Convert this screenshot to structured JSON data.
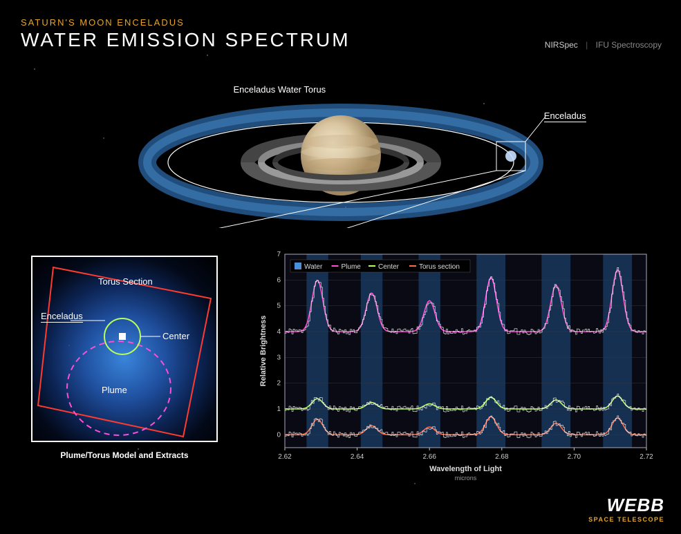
{
  "header": {
    "subtitle": "SATURN'S MOON ENCELADUS",
    "title": "WATER EMISSION SPECTRUM",
    "instrument_name": "NIRSpec",
    "instrument_mode": "IFU Spectroscopy"
  },
  "saturn": {
    "torus_label": "Enceladus Water Torus",
    "enceladus_label": "Enceladus",
    "torus_color": "#3a8de0",
    "saturn_colors": [
      "#d9c5a0",
      "#c9b088",
      "#e6d8b8"
    ],
    "ring_colors": [
      "#777",
      "#999",
      "#555"
    ]
  },
  "model": {
    "caption": "Plume/Torus Model and Extracts",
    "torus_section_label": "Torus Section",
    "enceladus_label": "Enceladus",
    "center_label": "Center",
    "plume_label": "Plume",
    "torus_box_color": "#ff3b2f",
    "center_circle_color": "#b8ff5c",
    "plume_dash_color": "#ff4fd6",
    "enceladus_marker_color": "#ffffff"
  },
  "spectrum": {
    "xlabel": "Wavelength of Light",
    "xlabel_unit": "microns",
    "ylabel": "Relative Brightness",
    "xlim": [
      2.62,
      2.72
    ],
    "ylim": [
      -0.5,
      7
    ],
    "xticks": [
      2.62,
      2.64,
      2.66,
      2.68,
      2.7,
      2.72
    ],
    "yticks": [
      0,
      1,
      2,
      3,
      4,
      5,
      6,
      7
    ],
    "legend": [
      {
        "label": "Water",
        "color": "#4a90d9",
        "type": "fill"
      },
      {
        "label": "Plume",
        "color": "#ff4fd6",
        "type": "line"
      },
      {
        "label": "Center",
        "color": "#b8ff5c",
        "type": "line"
      },
      {
        "label": "Torus section",
        "color": "#ff6b4a",
        "type": "line"
      }
    ],
    "water_bands": [
      [
        2.626,
        2.632
      ],
      [
        2.641,
        2.647
      ],
      [
        2.657,
        2.663
      ],
      [
        2.673,
        2.681
      ],
      [
        2.691,
        2.699
      ],
      [
        2.708,
        2.716
      ]
    ],
    "water_band_color": "#1e4a7a",
    "background": "#0a0a14",
    "grid_color": "#333844",
    "axis_color": "#aab",
    "tick_fontsize": 10,
    "label_fontsize": 11,
    "series": {
      "plume": {
        "baseline": 4.0,
        "color": "#ff4fd6",
        "peaks": [
          {
            "x": 2.629,
            "h": 2.0
          },
          {
            "x": 2.644,
            "h": 1.5
          },
          {
            "x": 2.66,
            "h": 1.2
          },
          {
            "x": 2.677,
            "h": 2.1
          },
          {
            "x": 2.695,
            "h": 1.8
          },
          {
            "x": 2.712,
            "h": 2.4
          }
        ]
      },
      "center": {
        "baseline": 1.0,
        "color": "#b8ff5c",
        "peaks": [
          {
            "x": 2.629,
            "h": 0.4
          },
          {
            "x": 2.644,
            "h": 0.25
          },
          {
            "x": 2.66,
            "h": 0.2
          },
          {
            "x": 2.677,
            "h": 0.45
          },
          {
            "x": 2.695,
            "h": 0.35
          },
          {
            "x": 2.712,
            "h": 0.5
          }
        ]
      },
      "torus": {
        "baseline": 0.0,
        "color": "#ff6b4a",
        "peaks": [
          {
            "x": 2.629,
            "h": 0.6
          },
          {
            "x": 2.644,
            "h": 0.35
          },
          {
            "x": 2.66,
            "h": 0.3
          },
          {
            "x": 2.677,
            "h": 0.7
          },
          {
            "x": 2.695,
            "h": 0.45
          },
          {
            "x": 2.712,
            "h": 0.65
          }
        ]
      }
    },
    "noise_amp": 0.12,
    "peak_width": 0.0015
  },
  "logo": {
    "main": "WEBB",
    "sub": "SPACE TELESCOPE"
  }
}
